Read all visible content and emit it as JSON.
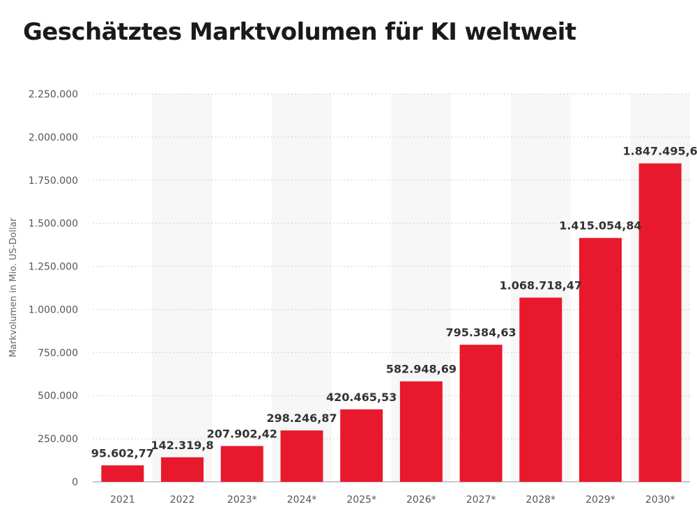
{
  "chart_data": {
    "type": "bar",
    "title": "Geschätztes Marktvolumen für KI weltweit",
    "ylabel": "Markvolumen in Mio. US-Dollar",
    "xlabel": "",
    "categories": [
      "2021",
      "2022",
      "2023*",
      "2024*",
      "2025*",
      "2026*",
      "2027*",
      "2028*",
      "2029*",
      "2030*"
    ],
    "values": [
      95602.77,
      142319.8,
      207902.42,
      298246.87,
      420465.53,
      582948.69,
      795384.63,
      1068718.47,
      1415054.84,
      1847495.6
    ],
    "value_labels": [
      "95.602,77",
      "142.319,8",
      "207.902,42",
      "298.246,87",
      "420.465,53",
      "582.948,69",
      "795.384,63",
      "1.068.718,47",
      "1.415.054,84",
      "1.847.495,6"
    ],
    "yticks": [
      0,
      250000,
      500000,
      750000,
      1000000,
      1250000,
      1500000,
      1750000,
      2000000,
      2250000
    ],
    "ytick_labels": [
      "0",
      "250.000",
      "500.000",
      "750.000",
      "1.000.000",
      "1.250.000",
      "1.500.000",
      "1.750.000",
      "2.000.000",
      "2.250.000"
    ],
    "ylim": [
      0,
      2250000
    ],
    "grid": true,
    "bar_color": "#e8192c",
    "band_color": "#f7f7f7",
    "grid_color": "#cfcfcf"
  }
}
